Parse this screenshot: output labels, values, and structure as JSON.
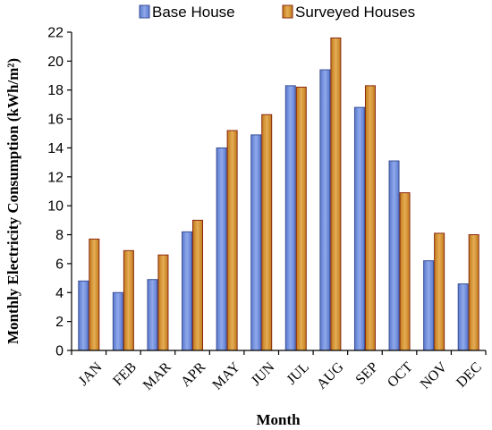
{
  "chart_data": {
    "type": "bar",
    "title": "",
    "xlabel": "Month",
    "ylabel": "Monthly Electricity Consumption (kWh/m²)",
    "ylim": [
      0,
      22
    ],
    "yticks": [
      "0",
      "2",
      "4",
      "6",
      "8",
      "10",
      "12",
      "14",
      "16",
      "18",
      "20",
      "22"
    ],
    "grid": false,
    "legend_position": "top",
    "categories": [
      "JAN",
      "FEB",
      "MAR",
      "APR",
      "MAY",
      "JUN",
      "JUL",
      "AUG",
      "SEP",
      "OCT",
      "NOV",
      "DEC"
    ],
    "series": [
      {
        "name": "Base House",
        "color": "#6f8fd8",
        "values": [
          4.8,
          4.0,
          4.9,
          8.2,
          14.0,
          14.9,
          18.3,
          19.4,
          16.8,
          13.1,
          6.2,
          4.6
        ]
      },
      {
        "name": "Surveyed Houses",
        "color": "#d39230",
        "values": [
          7.7,
          6.9,
          6.6,
          9.0,
          15.2,
          16.3,
          18.2,
          21.6,
          18.3,
          10.9,
          8.1,
          8.0
        ]
      }
    ]
  }
}
